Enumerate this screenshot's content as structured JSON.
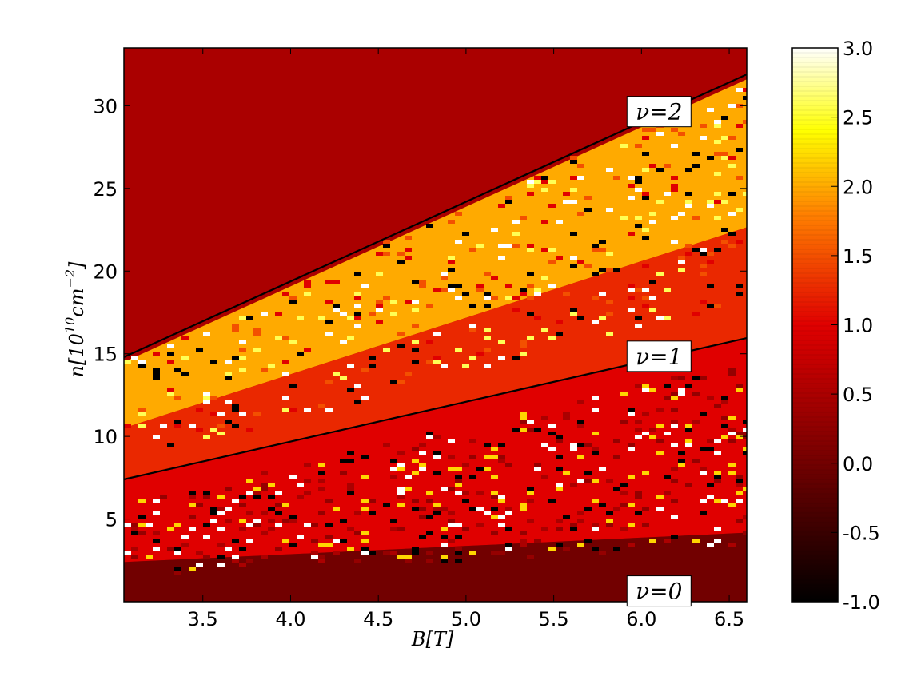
{
  "chart_data": {
    "type": "heatmap",
    "title": "",
    "xlabel": "B[T]",
    "ylabel": "n[10^10 cm^-2]",
    "ylabel_base": "n[10",
    "ylabel_exp": "10",
    "ylabel_unit": "cm",
    "ylabel_unit_exp": "−2",
    "ylabel_close": "]",
    "xlim": [
      3.05,
      6.6
    ],
    "ylim": [
      0,
      33.5
    ],
    "x_ticks": [
      "3.5",
      "4.0",
      "4.5",
      "5.0",
      "5.5",
      "6.0",
      "6.5"
    ],
    "x_tick_values": [
      3.5,
      4.0,
      4.5,
      5.0,
      5.5,
      6.0,
      6.5
    ],
    "y_ticks": [
      "5",
      "10",
      "15",
      "20",
      "25",
      "30"
    ],
    "y_tick_values": [
      5,
      10,
      15,
      20,
      25,
      30
    ],
    "colorbar": {
      "range": [
        -1.0,
        3.0
      ],
      "ticks": [
        "-1.0",
        "-0.5",
        "0.0",
        "0.5",
        "1.0",
        "1.5",
        "2.0",
        "2.5",
        "3.0"
      ],
      "tick_values": [
        -1.0,
        -0.5,
        0.0,
        0.5,
        1.0,
        1.5,
        2.0,
        2.5,
        3.0
      ],
      "colormap": "hot"
    },
    "regions": [
      {
        "name": "above nu=2",
        "value": 0.0
      },
      {
        "name": "between nu=1 and nu=2 (upper band)",
        "value": 2.0
      },
      {
        "name": "between nu=1 and nu=2 (lower band)",
        "value": 1.25
      },
      {
        "name": "between nu=0 and nu=1",
        "value": 1.0
      },
      {
        "name": "near nu=0",
        "value": 0.0
      }
    ],
    "lines": [
      {
        "name": "ν=2",
        "x": [
          3.05,
          6.6
        ],
        "y": [
          14.8,
          31.9
        ]
      },
      {
        "name": "ν=1",
        "x": [
          3.05,
          6.6
        ],
        "y": [
          7.4,
          15.95
        ]
      }
    ],
    "annotations": [
      {
        "label": "ν=2",
        "x": 6.1,
        "y": 29.6
      },
      {
        "label": "ν=1",
        "x": 6.1,
        "y": 14.8
      },
      {
        "label": "ν=0",
        "x": 6.1,
        "y": 0.6
      }
    ],
    "grid": false,
    "legend": "none"
  }
}
